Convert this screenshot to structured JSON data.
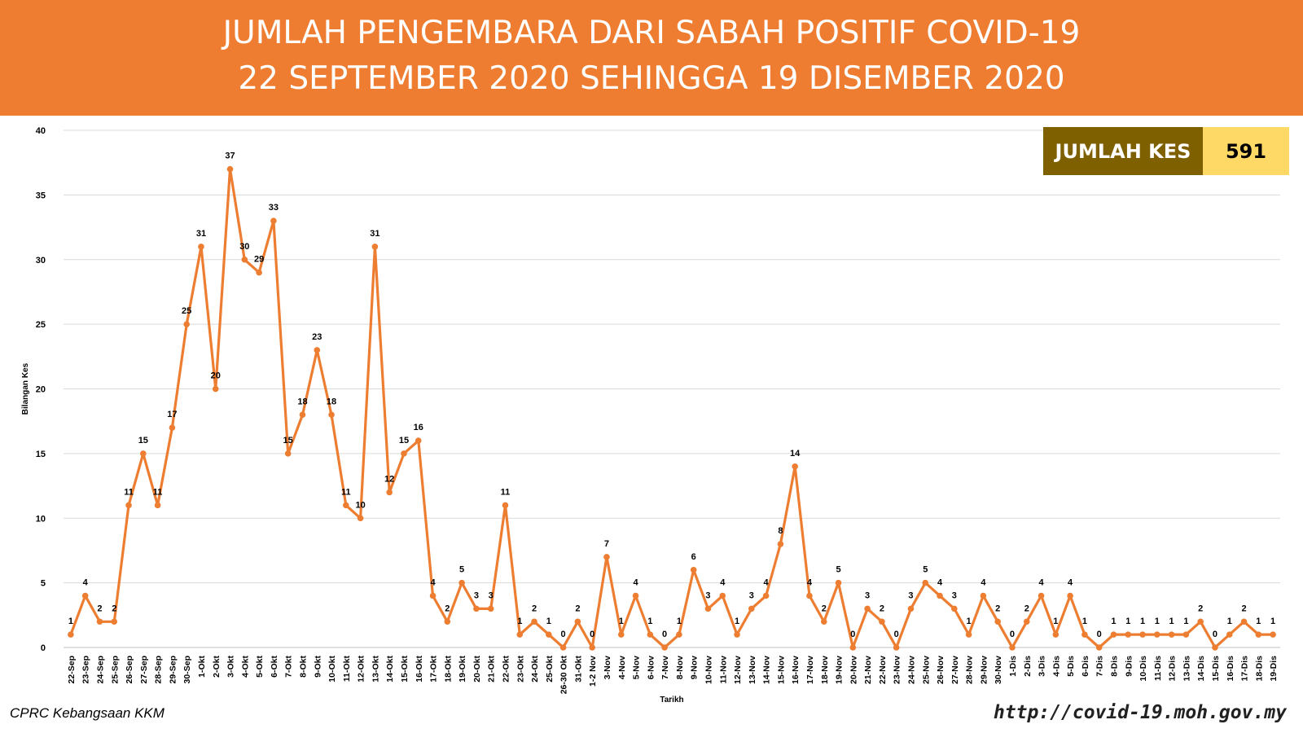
{
  "header": {
    "line1": "JUMLAH PENGEMBARA DARI SABAH POSITIF COVID-19",
    "line2": "22 SEPTEMBER 2020 SEHINGGA 19 DISEMBER 2020"
  },
  "summary": {
    "label": "JUMLAH KES",
    "value": "591"
  },
  "footer": {
    "source": "CPRC Kebangsaan KKM",
    "url": "http://covid-19.moh.gov.my"
  },
  "colors": {
    "banner": "#ee7d31",
    "line": "#ed7d31",
    "label_bg": "#7f6000",
    "value_bg": "#ffd966"
  },
  "chart_data": {
    "type": "line",
    "title": "",
    "xlabel": "Tarikh",
    "ylabel": "Bilangan Kes",
    "ylim": [
      0,
      40
    ],
    "yticks": [
      0,
      5,
      10,
      15,
      20,
      25,
      30,
      35,
      40
    ],
    "grid": true,
    "data_labels": true,
    "categories": [
      "22-Sep",
      "23-Sep",
      "24-Sep",
      "25-Sep",
      "26-Sep",
      "27-Sep",
      "28-Sep",
      "29-Sep",
      "30-Sep",
      "1-Okt",
      "2-Okt",
      "3-Okt",
      "4-Okt",
      "5-Okt",
      "6-Okt",
      "7-Okt",
      "8-Okt",
      "9-Okt",
      "10-Okt",
      "11-Okt",
      "12-Okt",
      "13-Okt",
      "14-Okt",
      "15-Okt",
      "16-Okt",
      "17-Okt",
      "18-Okt",
      "19-Okt",
      "20-Okt",
      "21-Okt",
      "22-Okt",
      "23-Okt",
      "24-Okt",
      "25-Okt",
      "26-30 Okt",
      "31-Okt",
      "1-2 Nov",
      "3-Nov",
      "4-Nov",
      "5-Nov",
      "6-Nov",
      "7-Nov",
      "8-Nov",
      "9-Nov",
      "10-Nov",
      "11-Nov",
      "12-Nov",
      "13-Nov",
      "14-Nov",
      "15-Nov",
      "16-Nov",
      "17-Nov",
      "18-Nov",
      "19-Nov",
      "20-Nov",
      "21-Nov",
      "22-Nov",
      "23-Nov",
      "24-Nov",
      "25-Nov",
      "26-Nov",
      "27-Nov",
      "28-Nov",
      "29-Nov",
      "30-Nov",
      "1-Dis",
      "2-Dis",
      "3-Dis",
      "4-Dis",
      "5-Dis",
      "6-Dis",
      "7-Dis",
      "8-Dis",
      "9-Dis",
      "10-Dis",
      "11-Dis",
      "12-Dis",
      "13-Dis",
      "14-Dis",
      "15-Dis",
      "16-Dis",
      "17-Dis",
      "18-Dis",
      "19-Dis"
    ],
    "values": [
      1,
      4,
      2,
      2,
      11,
      15,
      11,
      17,
      25,
      31,
      20,
      37,
      30,
      29,
      33,
      15,
      18,
      23,
      18,
      11,
      10,
      31,
      12,
      15,
      16,
      4,
      2,
      5,
      3,
      3,
      11,
      1,
      2,
      1,
      0,
      2,
      0,
      7,
      1,
      4,
      1,
      0,
      1,
      6,
      3,
      4,
      1,
      3,
      4,
      8,
      14,
      4,
      2,
      5,
      0,
      3,
      2,
      0,
      3,
      5,
      4,
      3,
      1,
      4,
      2,
      0,
      2,
      4,
      1,
      4,
      1,
      0,
      1,
      1,
      1,
      1,
      1,
      1,
      2,
      0,
      1,
      2,
      1,
      1
    ]
  }
}
